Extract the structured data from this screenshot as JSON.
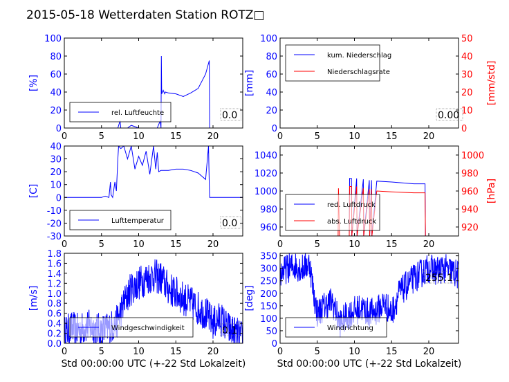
{
  "figure_title": "2015-05-18 Wetterdaten Station ROTZ□",
  "colors": {
    "blue": "#0000ff",
    "red": "#ff0000",
    "axis": "#000000"
  },
  "chart_data": [
    {
      "id": "humidity",
      "type": "line",
      "xlim": [
        0,
        24
      ],
      "ylim": [
        0,
        100
      ],
      "xticks": [
        0,
        5,
        10,
        15,
        20
      ],
      "yticks": [
        0,
        20,
        40,
        60,
        80,
        100
      ],
      "ylabel": "[%]",
      "corner_value": "0.0",
      "legend": [
        "rel. Luftfeuchte"
      ],
      "series": [
        {
          "name": "rel. Luftfeuchte",
          "color": "#0000ff",
          "x": [
            0,
            7.2,
            7.5,
            7.6,
            7.8,
            8.5,
            9,
            10,
            11.5,
            12.5,
            12.9,
            13.0,
            13.05,
            13.1,
            13.3,
            13.5,
            13.6,
            14,
            15,
            16,
            17,
            18,
            19,
            19.5,
            19.55,
            19.6,
            20,
            24
          ],
          "y": [
            0,
            0,
            8,
            0,
            0,
            0,
            3,
            0,
            0,
            0,
            8,
            0,
            80,
            38,
            42,
            38,
            40,
            39,
            38,
            35,
            39,
            44,
            60,
            75,
            0,
            0,
            0,
            0
          ]
        }
      ]
    },
    {
      "id": "precipitation",
      "type": "line",
      "xlim": [
        0,
        24
      ],
      "ylim": [
        0,
        100
      ],
      "ylim_right": [
        0,
        50
      ],
      "xticks": [
        0,
        5,
        10,
        15,
        20
      ],
      "yticks": [
        0,
        20,
        40,
        60,
        80,
        100
      ],
      "yticks_right": [
        0,
        10,
        20,
        30,
        40,
        50
      ],
      "ylabel": "[mm]",
      "ylabel_right": "[mm/std]",
      "corner_value": "0.00",
      "legend": [
        "kum. Niederschlag",
        "Niederschlagsrate"
      ],
      "series": [
        {
          "name": "kum. Niederschlag",
          "color": "#0000ff",
          "axis": "left",
          "x": [
            0,
            24
          ],
          "y": [
            0,
            0
          ]
        },
        {
          "name": "Niederschlagsrate",
          "color": "#ff0000",
          "axis": "right",
          "x": [
            0,
            24
          ],
          "y": [
            0,
            0
          ]
        }
      ]
    },
    {
      "id": "temperature",
      "type": "line",
      "xlim": [
        0,
        24
      ],
      "ylim": [
        -30,
        40
      ],
      "xticks": [
        0,
        5,
        10,
        15,
        20
      ],
      "yticks": [
        -30,
        -20,
        -10,
        0,
        10,
        20,
        30,
        40
      ],
      "ylabel": "[C]",
      "corner_value": "0.0",
      "legend": [
        "Lufttemperatur"
      ],
      "series": [
        {
          "name": "Lufttemperatur",
          "color": "#0000ff",
          "x": [
            0,
            5,
            5.5,
            6,
            6.2,
            6.3,
            6.5,
            6.8,
            7,
            7.2,
            7.3,
            7.6,
            8,
            8.5,
            9,
            9.5,
            10,
            10.5,
            11,
            11.5,
            12,
            12.3,
            12.5,
            12.7,
            13,
            14,
            15,
            16,
            17,
            18,
            19,
            19.4,
            19.5,
            19.55,
            20,
            24
          ],
          "y": [
            0,
            0,
            1,
            0,
            12,
            2,
            0,
            12,
            5,
            30,
            40,
            38,
            40,
            30,
            40,
            22,
            32,
            25,
            36,
            18,
            40,
            22,
            35,
            20,
            21,
            21,
            22,
            22,
            21,
            19,
            14,
            40,
            10,
            0,
            0,
            0
          ]
        }
      ]
    },
    {
      "id": "pressure",
      "type": "line",
      "xlim": [
        0,
        24
      ],
      "ylim": [
        950,
        1050
      ],
      "ylim_right": [
        910,
        1010
      ],
      "xticks": [
        0,
        5,
        10,
        15,
        20
      ],
      "yticks": [
        960,
        980,
        1000,
        1020,
        1040
      ],
      "yticks_right": [
        920,
        940,
        960,
        980,
        1000
      ],
      "ylabel_right": "[hPa]",
      "corner_value": "",
      "legend": [
        "red. Luftdruck",
        "abs. Luftdruck"
      ],
      "series": [
        {
          "name": "red. Luftdruck",
          "color": "#0000ff",
          "axis": "left",
          "x": [
            9.3,
            9.35,
            9.6,
            9.65,
            10.3,
            10.35,
            11.2,
            11.25,
            12,
            12.05,
            12.3,
            12.35,
            13,
            15,
            18,
            19.5,
            19.55
          ],
          "y": [
            950,
            1014,
            1014,
            950,
            1014,
            950,
            1013,
            950,
            1012,
            950,
            1012,
            950,
            1011,
            1010,
            1008,
            1008,
            950
          ]
        },
        {
          "name": "abs. Luftdruck",
          "color": "#ff0000",
          "axis": "right",
          "x": [
            7.8,
            7.85,
            8.0,
            9.3,
            9.35,
            9.6,
            9.65,
            10.3,
            10.35,
            11.2,
            11.25,
            12,
            12.05,
            12.3,
            12.35,
            13,
            15,
            18,
            19.5,
            19.55
          ],
          "y": [
            910,
            963,
            910,
            910,
            965,
            965,
            910,
            965,
            910,
            963,
            910,
            962,
            910,
            962,
            910,
            960,
            959,
            958,
            958,
            910
          ]
        }
      ]
    },
    {
      "id": "wind_speed",
      "type": "line",
      "xlim": [
        0,
        24
      ],
      "ylim": [
        0,
        1.8
      ],
      "xticks": [
        0,
        5,
        10,
        15,
        20
      ],
      "yticks": [
        0.0,
        0.2,
        0.4,
        0.6,
        0.8,
        1.0,
        1.2,
        1.4,
        1.6,
        1.8
      ],
      "ylabel": "[m/s]",
      "xlabel": "Std 00:00:00 UTC (+-22 Std Lokalzeit)",
      "corner_value": "0.1",
      "legend": [
        "Windgeschwindigkeit"
      ],
      "series": [
        {
          "name": "Windgeschwindigkeit",
          "color": "#0000ff",
          "x": [
            0,
            1,
            2,
            3,
            4,
            5,
            6,
            7,
            8,
            9,
            10,
            11,
            12,
            13,
            14,
            15,
            16,
            17,
            18,
            19,
            20,
            21,
            22,
            23,
            24
          ],
          "y": [
            0.2,
            0.3,
            0.25,
            0.35,
            0.3,
            0.25,
            0.3,
            0.4,
            0.8,
            1.1,
            1.2,
            1.3,
            1.35,
            1.3,
            1.1,
            1.0,
            0.9,
            0.8,
            0.7,
            0.6,
            0.4,
            0.5,
            0.3,
            0.2,
            0.1
          ],
          "noise": 0.35
        }
      ]
    },
    {
      "id": "wind_direction",
      "type": "line",
      "xlim": [
        0,
        24
      ],
      "ylim": [
        0,
        360
      ],
      "xticks": [
        0,
        5,
        10,
        15,
        20
      ],
      "yticks": [
        0,
        50,
        100,
        150,
        200,
        250,
        300,
        350
      ],
      "ylabel": "[deg]",
      "xlabel": "Std 00:00:00 UTC (+-22 Std Lokalzeit)",
      "corner_value": "255.1",
      "legend": [
        "Windrichtung"
      ],
      "series": [
        {
          "name": "Windrichtung",
          "color": "#0000ff",
          "x": [
            0,
            1,
            2,
            3,
            4,
            4.5,
            5,
            6,
            7,
            8,
            9,
            10,
            11,
            12,
            13,
            14,
            15,
            16,
            17,
            18,
            19,
            20,
            21,
            22,
            23,
            24
          ],
          "y": [
            280,
            300,
            310,
            300,
            320,
            200,
            120,
            150,
            170,
            80,
            110,
            130,
            140,
            120,
            130,
            160,
            120,
            200,
            230,
            260,
            280,
            300,
            290,
            300,
            290,
            270
          ],
          "noise": 60
        }
      ]
    }
  ]
}
